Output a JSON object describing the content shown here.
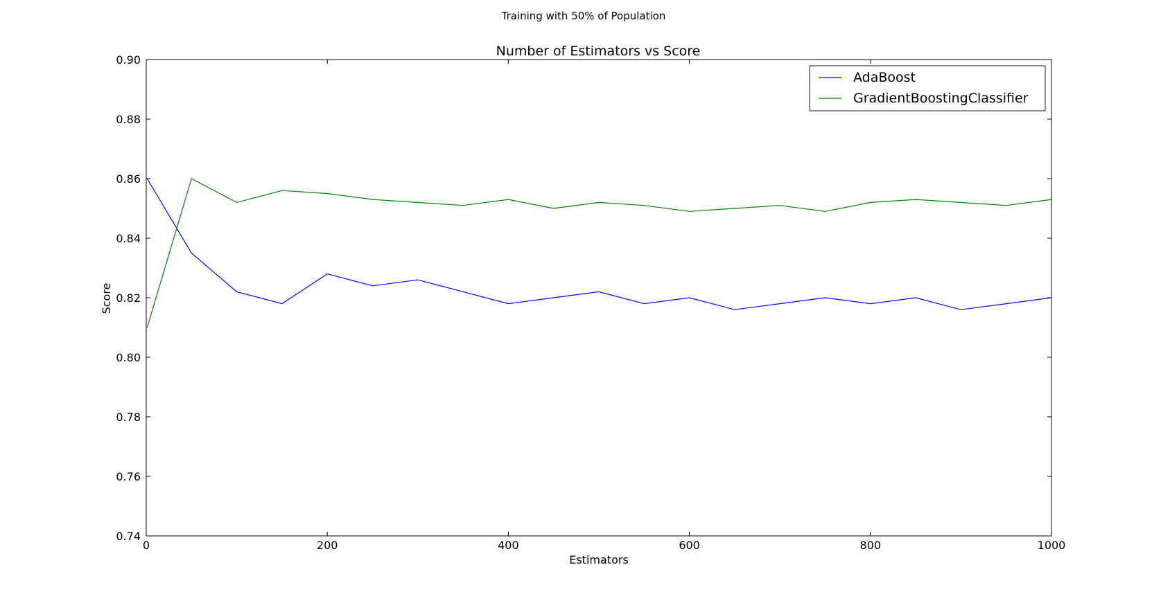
{
  "figure": {
    "suptitle": "Training with 50% of Population"
  },
  "chart_data": {
    "type": "line",
    "title": "Number of Estimators vs Score",
    "xlabel": "Estimators",
    "ylabel": "Score",
    "xlim": [
      0,
      1000
    ],
    "ylim": [
      0.74,
      0.9
    ],
    "xticks": [
      "0",
      "200",
      "400",
      "600",
      "800",
      "1000"
    ],
    "yticks": [
      "0.74",
      "0.76",
      "0.78",
      "0.80",
      "0.82",
      "0.84",
      "0.86",
      "0.88",
      "0.90"
    ],
    "grid": false,
    "legend_position": "top-right",
    "x": [
      1,
      50,
      100,
      150,
      200,
      250,
      300,
      350,
      400,
      450,
      500,
      550,
      600,
      650,
      700,
      750,
      800,
      850,
      900,
      950,
      1000
    ],
    "series": [
      {
        "name": "AdaBoost",
        "color": "#0000ff",
        "values": [
          0.86,
          0.835,
          0.822,
          0.818,
          0.828,
          0.824,
          0.826,
          0.822,
          0.818,
          0.82,
          0.822,
          0.818,
          0.82,
          0.816,
          0.818,
          0.82,
          0.818,
          0.82,
          0.816,
          0.818,
          0.82
        ]
      },
      {
        "name": "GradientBoostingClassifier",
        "color": "#008000",
        "values": [
          0.81,
          0.86,
          0.852,
          0.856,
          0.855,
          0.853,
          0.852,
          0.851,
          0.853,
          0.85,
          0.852,
          0.851,
          0.849,
          0.85,
          0.851,
          0.849,
          0.852,
          0.853,
          0.852,
          0.851,
          0.853
        ]
      }
    ]
  }
}
